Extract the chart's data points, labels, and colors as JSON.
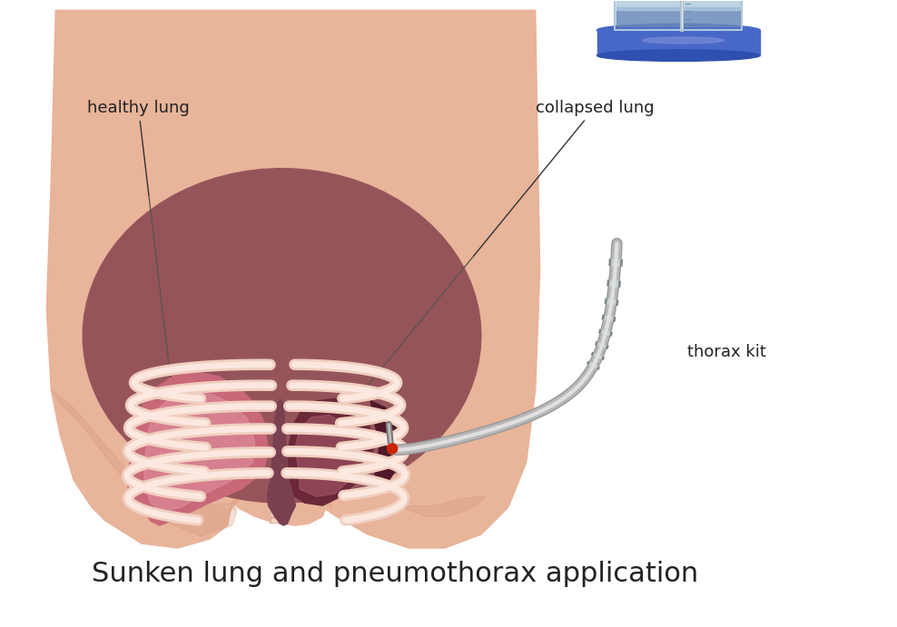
{
  "background_color": "#ffffff",
  "title": "Sunken lung and pneumothorax application",
  "title_fontsize": 22,
  "label_healthy_lung": "healthy lung",
  "label_collapsed_lung": "collapsed lung",
  "label_thorax_kit": "thorax kit",
  "skin_color": "#e8b49a",
  "skin_shadow": "#d49880",
  "skin_dark": "#c07858",
  "chest_dark": "#7a3545",
  "lung_healthy_outer": "#c86878",
  "lung_healthy_inner": "#e090a0",
  "lung_collapsed": "#6a2838",
  "lung_collapsed_inner": "#b06070",
  "rib_outer": "#f0cfc0",
  "rib_inner": "#fce8e0",
  "mediastinum": "#7a4050",
  "trachea_color": "#d4a898",
  "trachea_stripe": "#c49888",
  "tube_gray": "#b8b8b8",
  "tube_light": "#e0e0e0",
  "tube_dark": "#989898",
  "red_dot": "#cc2200",
  "device_glass_fill": "#ddeaf5",
  "device_glass_stroke": "#b0c8dc",
  "device_water_light": "#b0ccdf",
  "device_water_dark": "#6888b8",
  "device_base_dark": "#3050b0",
  "device_base_mid": "#4868c8",
  "device_base_light": "#8090d8",
  "pleural_dark": "#501828"
}
